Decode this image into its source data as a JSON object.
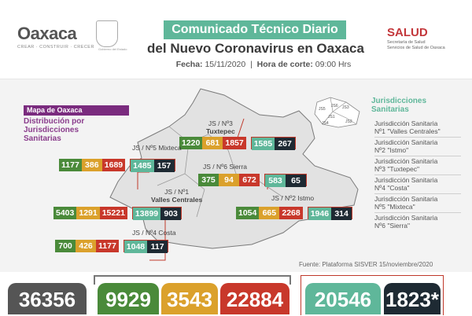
{
  "header": {
    "logo_word": "Oaxaca",
    "logo_tagline": "CREAR · CONSTRUIR · CRECER",
    "seal_caption": "Gobierno del Estado",
    "title_line1": "Comunicado Técnico Diario",
    "title_line2": "del Nuevo Coronavirus en Oaxaca",
    "date_label": "Fecha:",
    "date_value": "15/11/2020",
    "time_label": "Hora de corte:",
    "time_value": "09:00 Hrs",
    "salud": "SALUD",
    "salud_sub1": "Secretaría de Salud",
    "salud_sub2": "Servicios de Salud de Oaxaca"
  },
  "map": {
    "label": "Mapa de Oaxaca",
    "desc1": "Distribución por",
    "desc2": "Jurisdicciones",
    "desc3": "Sanitarias"
  },
  "jurisdictions": [
    {
      "label1": "JS / Nº3",
      "label2": "Tuxtepec",
      "values": [
        "1220",
        "681",
        "1857",
        "1585",
        "267"
      ]
    },
    {
      "label1": "JS / Nº5 Mixteca",
      "label2": "",
      "values": [
        "1177",
        "386",
        "1689",
        "1485",
        "157"
      ]
    },
    {
      "label1": "JS / Nº6 Sierra",
      "label2": "",
      "values": [
        "375",
        "94",
        "672",
        "583",
        "65"
      ]
    },
    {
      "label1": "JS / Nº1",
      "label2": "Valles Centrales",
      "values": [
        "5403",
        "1291",
        "15221",
        "13899",
        "903"
      ]
    },
    {
      "label1": "JS / Nº2 Istmo",
      "label2": "",
      "values": [
        "1054",
        "665",
        "2268",
        "1946",
        "314"
      ]
    },
    {
      "label1": "JS / Nº4 Costa",
      "label2": "",
      "values": [
        "700",
        "426",
        "1177",
        "1048",
        "117"
      ]
    }
  ],
  "legend": {
    "title1": "Jurisdicciones",
    "title2": "Sanitarias",
    "items": [
      {
        "line1": "Jurisdicción Sanitaria",
        "line2": "Nº1 \"Valles Centrales\""
      },
      {
        "line1": "Jurisdicción Sanitaria",
        "line2": "Nº2 \"Istmo\""
      },
      {
        "line1": "Jurisdicción Sanitaria",
        "line2": "Nº3 \"Tuxtepec\""
      },
      {
        "line1": "Jurisdicción Sanitaria",
        "line2": "Nº4 \"Costa\""
      },
      {
        "line1": "Jurisdicción Sanitaria",
        "line2": "Nº5 \"Mixteca\""
      },
      {
        "line1": "Jurisdicción Sanitaria",
        "line2": "Nº6 \"Sierra\""
      }
    ],
    "mini_map_labels": [
      "JS5",
      "JS6",
      "JS3",
      "JS1",
      "JS4",
      "JS2"
    ]
  },
  "source": "Fuente: Plataforma SISVER 15/noviembre/2020",
  "totals": [
    "36356",
    "9929",
    "3543",
    "22884",
    "20546",
    "1823*"
  ],
  "colors": {
    "green": "#4a8a3a",
    "yellow": "#dba12c",
    "red": "#c8382b",
    "teal": "#5fb79a",
    "dark": "#1e2a33",
    "gray": "#555555",
    "purple": "#7a2b7e"
  }
}
